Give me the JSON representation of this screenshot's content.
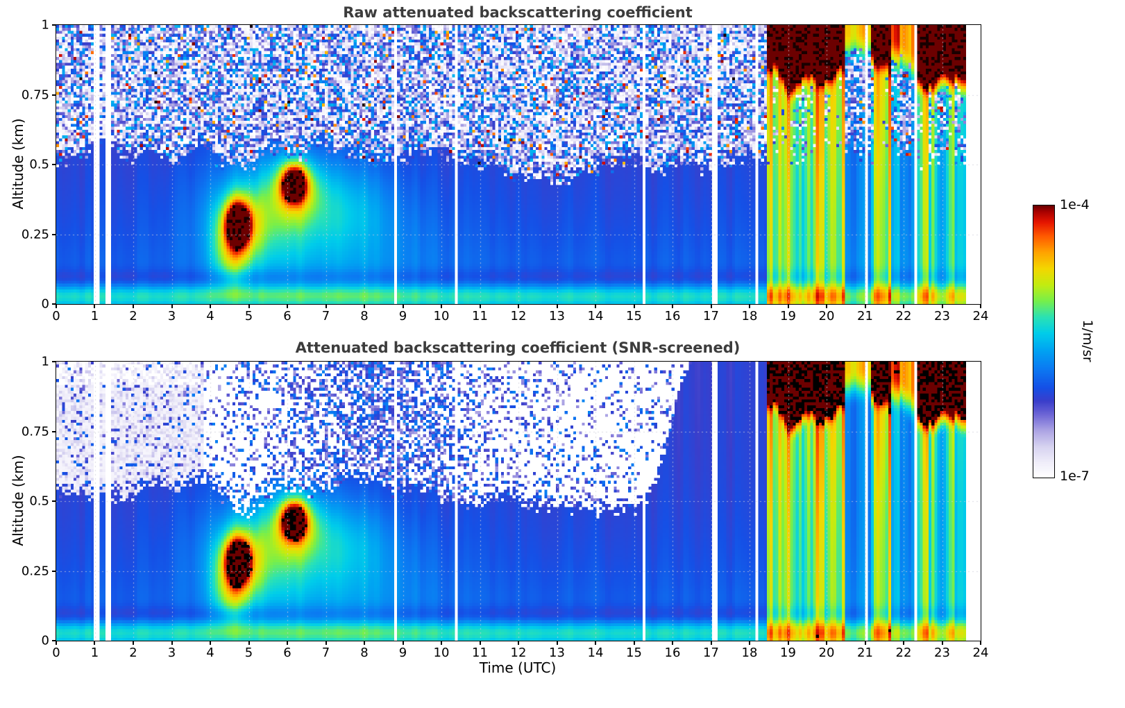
{
  "figure": {
    "background": "#ffffff",
    "title_color": "#3c3c3c"
  },
  "panels": [
    {
      "title": "Raw attenuated backscattering coefficient"
    },
    {
      "title": "Attenuated backscattering coefficient (SNR-screened)"
    }
  ],
  "axes": {
    "x": {
      "label": "Time (UTC)",
      "min": 0,
      "max": 24,
      "ticks": [
        0,
        1,
        2,
        3,
        4,
        5,
        6,
        7,
        8,
        9,
        10,
        11,
        12,
        13,
        14,
        15,
        16,
        17,
        18,
        19,
        20,
        21,
        22,
        23,
        24
      ],
      "tick_labels": [
        "0",
        "1",
        "2",
        "3",
        "4",
        "5",
        "6",
        "7",
        "8",
        "9",
        "10",
        "11",
        "12",
        "13",
        "14",
        "15",
        "16",
        "17",
        "18",
        "19",
        "20",
        "21",
        "22",
        "23",
        "24"
      ]
    },
    "y": {
      "label": "Altitude (km)",
      "min": 0,
      "max": 1,
      "ticks": [
        0,
        0.25,
        0.5,
        0.75,
        1
      ],
      "tick_labels": [
        "0",
        "0.25",
        "0.5",
        "0.75",
        "1"
      ]
    }
  },
  "colorbar": {
    "top_label": "1e-4",
    "bottom_label": "1e-7",
    "units": "1/m/sr"
  },
  "chart_data": {
    "type": "heatmap",
    "x_range": [
      0,
      24
    ],
    "y_range": [
      0,
      1
    ],
    "value_range": [
      "1e-7",
      "1e-4"
    ],
    "value_scale": "log10",
    "units": "1/m/sr",
    "panel_descriptions": [
      "Raw attenuated backscattering coefficient: full signal including noise speckle above ~0.5 km",
      "SNR-screened attenuated backscattering coefficient: low-SNR pixels removed (white)"
    ],
    "features_described": [
      "Background signal ~1e-6 1/m/sr (blue) with cyan surface layer ~5e-6 below 0.1 km",
      "Aerosol plume 04:10-05:20 UTC centered near 0.28 km, peak ~1e-4 1/m/sr (dark red core)",
      "Second plume 05:50-06:40 UTC centered near 0.43 km, peak ~1e-4 1/m/sr",
      "Convective layer ~03:30-09:00 UTC up to ~0.5 km (~3e-6, cyan/green)",
      "Precipitation and cloud period ~18:27-23:37 UTC: saturated vertical streaks with cloud tops 0.75-1.0 km (dark red/black)",
      "Quieter interludes 20:27-21:09 and 21:39-22:18 UTC (blue/cyan columns)",
      "Instrument gaps near 01:03 and 01:22 UTC; thin gaps near 08:49, 10:25, 15:15, 17:06, 18:13, 21:04, 22:20 UTC; no data after 23:37 UTC",
      "Screened panel shows pale lavender residual noise before 03:48 UTC and white removed regions above ~0.5 km mid-day"
    ],
    "colormap": [
      [
        0.0,
        "#ffffff"
      ],
      [
        0.05,
        "#f1effa"
      ],
      [
        0.11,
        "#d8d4f1"
      ],
      [
        0.17,
        "#aea6e4"
      ],
      [
        0.23,
        "#6e66d6"
      ],
      [
        0.28,
        "#3a3ecb"
      ],
      [
        0.33,
        "#1550e6"
      ],
      [
        0.4,
        "#0b7af2"
      ],
      [
        0.47,
        "#00a5f2"
      ],
      [
        0.53,
        "#00cdea"
      ],
      [
        0.59,
        "#2be2b4"
      ],
      [
        0.65,
        "#78ef4a"
      ],
      [
        0.71,
        "#c4ec10"
      ],
      [
        0.77,
        "#f4d600"
      ],
      [
        0.83,
        "#ffa200"
      ],
      [
        0.89,
        "#ff5800"
      ],
      [
        0.94,
        "#e61500"
      ],
      [
        0.98,
        "#a60000"
      ],
      [
        1.0,
        "#6c0000"
      ]
    ],
    "model": {
      "grid": {
        "nx": 320,
        "nz": 96
      },
      "data_end": 23.62,
      "gaps": [
        [
          1.05,
          0.05
        ],
        [
          1.36,
          0.05
        ],
        [
          8.82,
          0.04
        ],
        [
          10.42,
          0.04
        ],
        [
          15.25,
          0.04
        ],
        [
          17.1,
          0.04
        ],
        [
          18.22,
          0.04
        ],
        [
          21.07,
          0.04
        ],
        [
          22.33,
          0.04
        ]
      ],
      "base": {
        "offset": -6.15,
        "amp": 0.35,
        "scale": 0.3
      },
      "surface": {
        "amp": 0.55,
        "z": 0.03,
        "sz": 0.03
      },
      "dipband": {
        "amp": 0.22,
        "z": 0.09,
        "sz": 0.025
      },
      "streak": {
        "amp": 0.12,
        "freq": 6
      },
      "blobs": [
        [
          4.72,
          0.285,
          0.2,
          0.05,
          2.25
        ],
        [
          6.18,
          0.43,
          0.2,
          0.04,
          2.15
        ],
        [
          4.72,
          0.28,
          0.42,
          0.085,
          0.95
        ],
        [
          6.2,
          0.42,
          0.42,
          0.075,
          0.9
        ],
        [
          5.5,
          0.32,
          0.95,
          0.13,
          0.5
        ],
        [
          7.4,
          0.36,
          0.9,
          0.11,
          0.3
        ],
        [
          4.55,
          0.16,
          0.35,
          0.07,
          0.6
        ],
        [
          5.8,
          0.3,
          1.7,
          0.2,
          0.28
        ],
        [
          8.3,
          0.2,
          1.3,
          0.18,
          0.22
        ]
      ],
      "rain": {
        "start": 18.45,
        "end": 23.62,
        "freq1": 7,
        "freq2": 16,
        "segments": [
          [
            18.45,
            19.35,
            1.0,
            1.0
          ],
          [
            19.35,
            20.45,
            0.95,
            1.0
          ],
          [
            20.45,
            21.15,
            0.3,
            0.5
          ],
          [
            21.15,
            21.65,
            1.05,
            0.9
          ],
          [
            21.65,
            22.3,
            0.35,
            0.55
          ],
          [
            22.3,
            23.3,
            0.78,
            1.0
          ],
          [
            23.3,
            23.62,
            0.55,
            0.9
          ]
        ],
        "cloud_amp": 2.2,
        "cloud_zbase": 0.88,
        "cloud_zvar": 0.12,
        "cloud_sharp": 0.14
      },
      "noise": {
        "edge": 0.5,
        "day_dip": 0.06,
        "day_t": 13,
        "day_st": 3,
        "wobble": 0.05,
        "white_pow": 1.7,
        "white_scale": 0.5,
        "hot_p": 0.025
      },
      "screen": {
        "edge": 0.52,
        "plume_dip": 0.13,
        "plume_t": 4.95,
        "plume_st": 0.45,
        "day_dip": 0.07,
        "day_t": 13,
        "day_st": 2.6,
        "wobble": 0.05,
        "clear_after": 15.5,
        "clear_rate": 0.45,
        "lavender_until": 3.8,
        "speck_base": 0.15,
        "speck_amp": 0.5,
        "speck_t": 8.5,
        "speck_st": 1.7
      }
    }
  }
}
